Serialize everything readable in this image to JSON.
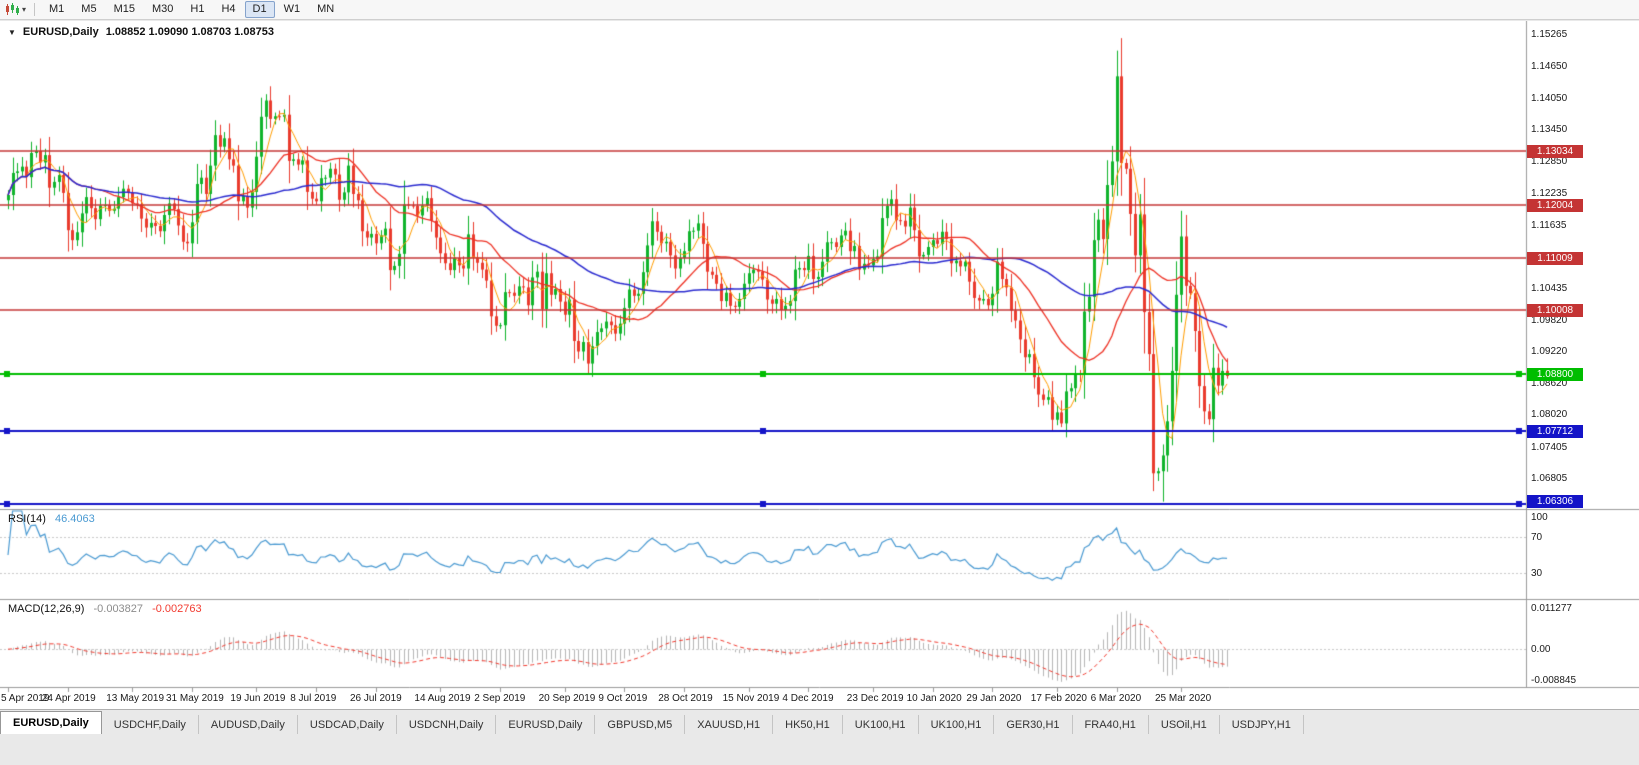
{
  "toolbar": {
    "timeframes": [
      "M1",
      "M5",
      "M15",
      "M30",
      "H1",
      "H4",
      "D1",
      "W1",
      "MN"
    ],
    "active": "D1",
    "caret_glyph": "▾"
  },
  "chart": {
    "collapse_glyph": "▼",
    "title_symbol": "EURUSD,Daily",
    "title_values": "1.08852 1.09090 1.08703 1.08753"
  },
  "chart_data": {
    "type": "candlestick",
    "symbol": "EURUSD",
    "timeframe": "Daily",
    "last_bar": {
      "open": 1.08852,
      "high": 1.0909,
      "low": 1.08703,
      "close": 1.08753
    },
    "first_open": 1.121,
    "render_seed": 123457,
    "closes": [
      1.122,
      1.1262,
      1.1265,
      1.1274,
      1.1254,
      1.13,
      1.1304,
      1.1282,
      1.1296,
      1.1234,
      1.1245,
      1.1258,
      1.1224,
      1.1153,
      1.1134,
      1.1149,
      1.1185,
      1.1216,
      1.1195,
      1.1174,
      1.12,
      1.1201,
      1.119,
      1.1194,
      1.1216,
      1.1232,
      1.1224,
      1.1204,
      1.1202,
      1.1175,
      1.1158,
      1.1167,
      1.1161,
      1.1151,
      1.1182,
      1.1204,
      1.1193,
      1.1162,
      1.1131,
      1.1128,
      1.1168,
      1.1241,
      1.1253,
      1.1222,
      1.1276,
      1.1334,
      1.1312,
      1.1328,
      1.1288,
      1.1276,
      1.1208,
      1.1218,
      1.1196,
      1.1226,
      1.1293,
      1.1369,
      1.14,
      1.1365,
      1.137,
      1.1369,
      1.1373,
      1.1285,
      1.1288,
      1.1278,
      1.1286,
      1.1226,
      1.1213,
      1.1208,
      1.1252,
      1.1253,
      1.127,
      1.1259,
      1.1211,
      1.1225,
      1.1276,
      1.1222,
      1.121,
      1.1151,
      1.1139,
      1.1146,
      1.1128,
      1.1143,
      1.1156,
      1.1077,
      1.1085,
      1.1108,
      1.1202,
      1.12,
      1.1199,
      1.1181,
      1.12,
      1.1214,
      1.1171,
      1.1139,
      1.1109,
      1.109,
      1.1077,
      1.11,
      1.1086,
      1.108,
      1.1145,
      1.1101,
      1.1091,
      1.1078,
      1.1057,
      1.0989,
      1.0971,
      1.0972,
      1.1035,
      1.1034,
      1.1028,
      1.1046,
      1.1044,
      1.101,
      1.1063,
      1.1074,
      1.1003,
      1.1071,
      1.103,
      1.1041,
      1.1017,
      1.0992,
      1.1021,
      1.0942,
      1.0922,
      1.094,
      1.0899,
      1.0932,
      1.0959,
      1.0966,
      1.0979,
      1.0972,
      1.0956,
      1.0975,
      1.1005,
      1.104,
      1.1028,
      1.1032,
      1.1073,
      1.1124,
      1.117,
      1.115,
      1.1128,
      1.1131,
      1.1105,
      1.108,
      1.11,
      1.1113,
      1.1151,
      1.1152,
      1.1166,
      1.1127,
      1.1074,
      1.1068,
      1.1051,
      1.1018,
      1.1034,
      1.1009,
      1.1007,
      1.1022,
      1.1051,
      1.1071,
      1.1078,
      1.1074,
      1.1059,
      1.1021,
      1.1013,
      1.1022,
      1.1001,
      1.1009,
      1.1018,
      1.1078,
      1.1081,
      1.1077,
      1.1104,
      1.106,
      1.1064,
      1.1093,
      1.113,
      1.113,
      1.1121,
      1.1143,
      1.1152,
      1.1113,
      1.1123,
      1.1078,
      1.1089,
      1.1086,
      1.1098,
      1.1103,
      1.1176,
      1.1199,
      1.1212,
      1.1172,
      1.1171,
      1.116,
      1.1196,
      1.1153,
      1.1103,
      1.1106,
      1.1121,
      1.1134,
      1.1127,
      1.115,
      1.1136,
      1.109,
      1.1095,
      1.1084,
      1.1093,
      1.1055,
      1.1024,
      1.1019,
      1.1022,
      1.101,
      1.1032,
      1.1093,
      1.106,
      1.1044,
      1.1,
      1.0981,
      1.0945,
      1.0911,
      1.0917,
      1.0873,
      1.084,
      1.083,
      1.0835,
      1.0792,
      1.0806,
      1.0785,
      1.0846,
      1.0852,
      1.0881,
      1.088,
      1.0998,
      1.1026,
      1.1134,
      1.1173,
      1.1136,
      1.1239,
      1.1284,
      1.1446,
      1.1281,
      1.127,
      1.1184,
      1.1105,
      1.1183,
      1.0997,
      1.0917,
      1.069,
      1.0694,
      1.0724,
      1.0789,
      1.0885,
      1.103,
      1.1141,
      1.1047,
      1.1033,
      1.0961,
      1.0856,
      1.0808,
      1.0793,
      1.0891,
      1.0857,
      1.0885,
      1.0875
    ],
    "overrides": {
      "56": {
        "high": 1.1412
      },
      "126": {
        "low": 1.088
      },
      "229": {
        "low": 1.0778
      },
      "241": {
        "high": 1.1495
      },
      "249": {
        "low": 1.0656
      },
      "251": {
        "low": 1.0636
      },
      "265": {
        "open": 1.08852,
        "high": 1.0909,
        "low": 1.08703,
        "close": 1.08753
      }
    },
    "price_axis": {
      "max": 1.154,
      "min": 1.0622,
      "ticks": [
        1.15265,
        1.1465,
        1.1405,
        1.1345,
        1.1285,
        1.12235,
        1.11635,
        1.11035,
        1.10435,
        1.0982,
        1.0922,
        1.0862,
        1.0802,
        1.07405,
        1.06805,
        1.06205
      ]
    },
    "levels": [
      {
        "value": 1.13034,
        "color": "#c43434",
        "selected": false
      },
      {
        "value": 1.12004,
        "color": "#c43434",
        "selected": false
      },
      {
        "value": 1.11009,
        "color": "#c43434",
        "selected": false
      },
      {
        "value": 1.10008,
        "color": "#c43434",
        "selected": false
      },
      {
        "value": 1.088,
        "color": "#00bd00",
        "selected": true
      },
      {
        "value": 1.07712,
        "color": "#1414c8",
        "selected": true
      },
      {
        "value": 1.06306,
        "color": "#1414c8",
        "selected": true
      }
    ],
    "moving_averages": [
      {
        "period": 5,
        "color": "#ff9d00",
        "width": 1
      },
      {
        "period": 20,
        "color": "#ee3124",
        "width": 1.3
      },
      {
        "period": 50,
        "color": "#2b2bd0",
        "width": 1.5
      }
    ],
    "colors": {
      "up": "#10b42c",
      "down": "#ea3b2e",
      "axis_line": "#9a9a9a",
      "axis_text": "#1a1a1a",
      "background": "#ffffff"
    },
    "date_labels": [
      "5 Apr 2019",
      "24 Apr 2019",
      "13 May 2019",
      "31 May 2019",
      "19 Jun 2019",
      "8 Jul 2019",
      "26 Jul 2019",
      "14 Aug 2019",
      "2 Sep 2019",
      "20 Sep 2019",
      "9 Oct 2019",
      "28 Oct 2019",
      "15 Nov 2019",
      "4 Dec 2019",
      "23 Dec 2019",
      "10 Jan 2020",
      "29 Jan 2020",
      "17 Feb 2020",
      "6 Mar 2020",
      "25 Mar 2020"
    ],
    "label_step": 13.4,
    "rsi": {
      "name": "RSI(14)",
      "period": 14,
      "value": "46.4063",
      "color": "#4a9ad2",
      "levels": [
        70,
        30
      ],
      "axis_ticks": [
        100,
        70,
        30
      ]
    },
    "macd": {
      "name": "MACD(12,26,9)",
      "fast": 12,
      "slow": 26,
      "signal": 9,
      "value_main": "-0.003827",
      "value_signal": "-0.002763",
      "zero_label": "0.00",
      "axis_max": 0.011277,
      "axis_min": -0.008845,
      "hist_color": "#b6b6b6",
      "signal_color": "#f23b30"
    }
  },
  "tabs": {
    "active_index": 0,
    "items": [
      "EURUSD,Daily",
      "USDCHF,Daily",
      "AUDUSD,Daily",
      "USDCAD,Daily",
      "USDCNH,Daily",
      "EURUSD,Daily",
      "GBPUSD,M5",
      "XAUUSD,H1",
      "HK50,H1",
      "UK100,H1",
      "UK100,H1",
      "GER30,H1",
      "FRA40,H1",
      "USOil,H1",
      "USDJPY,H1"
    ]
  }
}
